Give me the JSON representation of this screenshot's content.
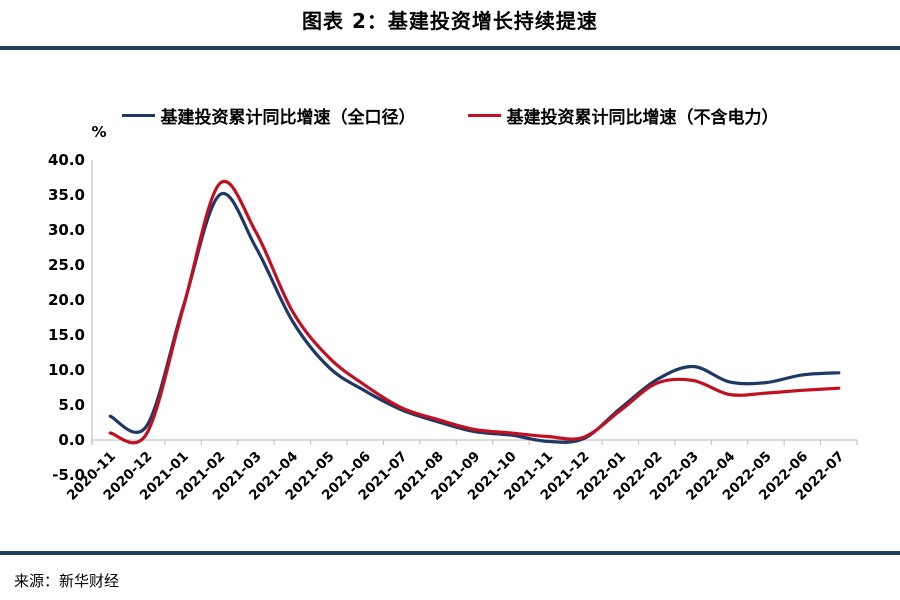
{
  "header": {
    "title": "图表 2：基建投资增长持续提速"
  },
  "source": {
    "label": "来源：新华财经"
  },
  "colors": {
    "rule": "#223e5f",
    "axis": "#c6c6c6",
    "text": "#000000",
    "series_full_caliber": "#1f3864",
    "series_excl_power": "#c01022"
  },
  "chart_data": {
    "type": "line",
    "title": "图表 2：基建投资增长持续提速",
    "xlabel": "",
    "ylabel": "%",
    "ylim": [
      -5.0,
      40.0
    ],
    "ytick_step": 5,
    "ytick_labels": [
      "40.0",
      "35.0",
      "30.0",
      "25.0",
      "20.0",
      "15.0",
      "10.0",
      "5.0",
      "0.0",
      "-5.0"
    ],
    "grid": false,
    "smooth": true,
    "legend_position": "top",
    "categories": [
      "2020-11",
      "2020-12",
      "2021-01",
      "2021-02",
      "2021-03",
      "2021-04",
      "2021-05",
      "2021-06",
      "2021-07",
      "2021-08",
      "2021-09",
      "2021-10",
      "2021-11",
      "2021-12",
      "2022-01",
      "2022-02",
      "2022-03",
      "2022-04",
      "2022-05",
      "2022-06",
      "2022-07"
    ],
    "series": [
      {
        "name": "基建投资累计同比增速（全口径）",
        "color": "#1f3864",
        "values": [
          3.4,
          2.0,
          19.0,
          35.0,
          27.5,
          17.0,
          10.4,
          7.0,
          4.3,
          2.6,
          1.2,
          0.7,
          -0.2,
          0.2,
          4.5,
          8.6,
          10.5,
          8.3,
          8.2,
          9.3,
          9.6
        ]
      },
      {
        "name": "基建投资累计同比增速（不含电力）",
        "color": "#c01022",
        "values": [
          1.0,
          0.9,
          18.8,
          36.6,
          29.7,
          18.4,
          11.8,
          7.8,
          4.6,
          2.9,
          1.5,
          1.0,
          0.5,
          0.4,
          4.2,
          8.1,
          8.5,
          6.5,
          6.7,
          7.1,
          7.4
        ]
      }
    ]
  }
}
